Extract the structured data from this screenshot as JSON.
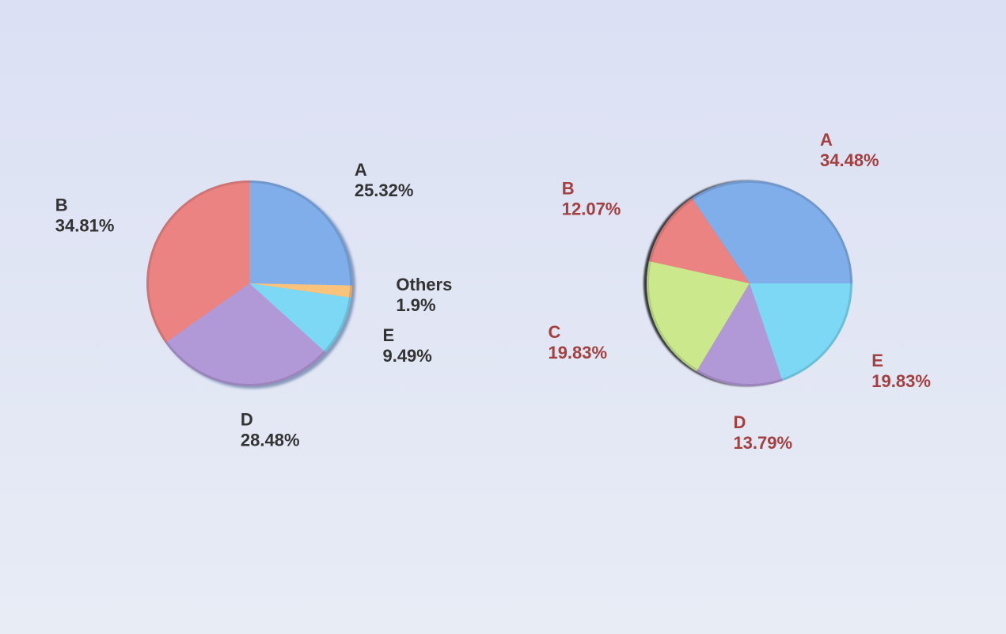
{
  "chart_data": [
    {
      "type": "pie",
      "label_color": "#333333",
      "start": "top",
      "direction": "clockwise",
      "slices": [
        {
          "name": "A",
          "value": 25.32,
          "label": "25.32%",
          "color": "#7faeea"
        },
        {
          "name": "Others",
          "value": 1.9,
          "label": "1.9%",
          "color": "#f9c37c"
        },
        {
          "name": "E",
          "value": 9.49,
          "label": "9.49%",
          "color": "#7bd8f4"
        },
        {
          "name": "D",
          "value": 28.48,
          "label": "28.48%",
          "color": "#b198d6"
        },
        {
          "name": "B",
          "value": 34.81,
          "label": "34.81%",
          "color": "#ec8383"
        }
      ]
    },
    {
      "type": "pie",
      "label_color": "#a33f3f",
      "start": "right",
      "direction": "counterclockwise",
      "slices": [
        {
          "name": "A",
          "value": 34.48,
          "label": "34.48%",
          "color": "#7faeea"
        },
        {
          "name": "B",
          "value": 12.07,
          "label": "12.07%",
          "color": "#ec8383"
        },
        {
          "name": "C",
          "value": 19.83,
          "label": "19.83%",
          "color": "#cbe88c"
        },
        {
          "name": "D",
          "value": 13.79,
          "label": "13.79%",
          "color": "#b198d6"
        },
        {
          "name": "E",
          "value": 19.83,
          "label": "19.83%",
          "color": "#7bd8f4"
        }
      ]
    }
  ]
}
